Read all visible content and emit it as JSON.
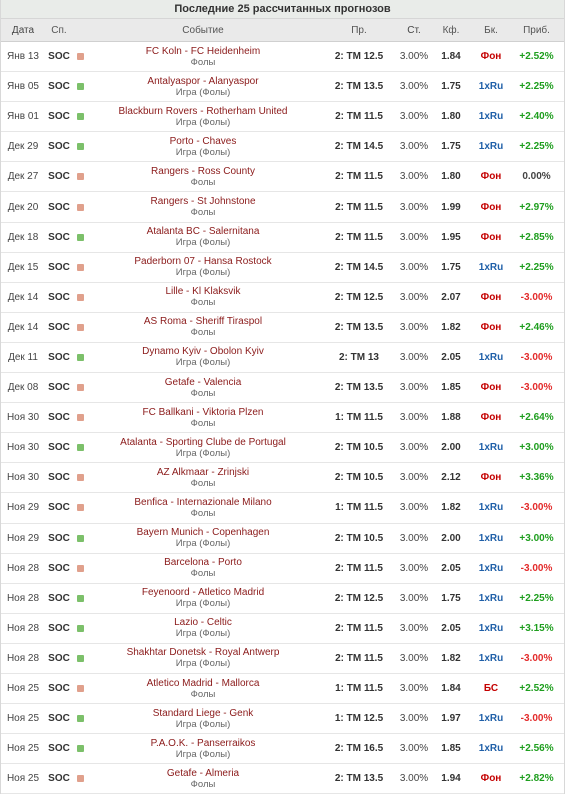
{
  "title": "Последние 25 рассчитанных прогнозов",
  "columns": {
    "date": "Дата",
    "sport": "Сп.",
    "event": "Событие",
    "prediction": "Пр.",
    "stake": "Ст.",
    "odds": "Кф.",
    "bookmaker": "Бк.",
    "profit": "Приб."
  },
  "colors": {
    "loss_mark": "#e0a08c",
    "win_mark": "#7cc06a",
    "positive": "#1e9e1e",
    "negative": "#e32b2b",
    "event_text": "#8b1a1a"
  },
  "rows": [
    {
      "date": "Янв 13",
      "sport": "SOC",
      "result": "loss",
      "event": "FC Koln - FC Heidenheim",
      "category": "Фолы",
      "prediction": "2: ТМ 12.5",
      "stake": "3.00%",
      "odds": "1.84",
      "bookmaker": "Фон",
      "profit": "+2.52%",
      "profit_sign": "pos"
    },
    {
      "date": "Янв 05",
      "sport": "SOC",
      "result": "win",
      "event": "Antalyaspor - Alanyaspor",
      "category": "Игра (Фолы)",
      "prediction": "2: ТМ 13.5",
      "stake": "3.00%",
      "odds": "1.75",
      "bookmaker": "1xRu",
      "profit": "+2.25%",
      "profit_sign": "pos"
    },
    {
      "date": "Янв 01",
      "sport": "SOC",
      "result": "win",
      "event": "Blackburn Rovers - Rotherham United",
      "category": "Игра (Фолы)",
      "prediction": "2: ТМ 11.5",
      "stake": "3.00%",
      "odds": "1.80",
      "bookmaker": "1xRu",
      "profit": "+2.40%",
      "profit_sign": "pos"
    },
    {
      "date": "Дек 29",
      "sport": "SOC",
      "result": "win",
      "event": "Porto - Chaves",
      "category": "Игра (Фолы)",
      "prediction": "2: ТМ 14.5",
      "stake": "3.00%",
      "odds": "1.75",
      "bookmaker": "1xRu",
      "profit": "+2.25%",
      "profit_sign": "pos"
    },
    {
      "date": "Дек 27",
      "sport": "SOC",
      "result": "loss",
      "event": "Rangers - Ross County",
      "category": "Фолы",
      "prediction": "2: ТМ 11.5",
      "stake": "3.00%",
      "odds": "1.80",
      "bookmaker": "Фон",
      "profit": "0.00%",
      "profit_sign": "zero"
    },
    {
      "date": "Дек 20",
      "sport": "SOC",
      "result": "loss",
      "event": "Rangers - St Johnstone",
      "category": "Фолы",
      "prediction": "2: ТМ 11.5",
      "stake": "3.00%",
      "odds": "1.99",
      "bookmaker": "Фон",
      "profit": "+2.97%",
      "profit_sign": "pos"
    },
    {
      "date": "Дек 18",
      "sport": "SOC",
      "result": "win",
      "event": "Atalanta BC - Salernitana",
      "category": "Игра (Фолы)",
      "prediction": "2: ТМ 11.5",
      "stake": "3.00%",
      "odds": "1.95",
      "bookmaker": "Фон",
      "profit": "+2.85%",
      "profit_sign": "pos"
    },
    {
      "date": "Дек 15",
      "sport": "SOC",
      "result": "loss",
      "event": "Paderborn 07 - Hansa Rostock",
      "category": "Игра (Фолы)",
      "prediction": "2: ТМ 14.5",
      "stake": "3.00%",
      "odds": "1.75",
      "bookmaker": "1xRu",
      "profit": "+2.25%",
      "profit_sign": "pos"
    },
    {
      "date": "Дек 14",
      "sport": "SOC",
      "result": "loss",
      "event": "Lille - Kl Klaksvik",
      "category": "Фолы",
      "prediction": "2: ТМ 12.5",
      "stake": "3.00%",
      "odds": "2.07",
      "bookmaker": "Фон",
      "profit": "-3.00%",
      "profit_sign": "neg"
    },
    {
      "date": "Дек 14",
      "sport": "SOC",
      "result": "loss",
      "event": "AS Roma - Sheriff Tiraspol",
      "category": "Фолы",
      "prediction": "2: ТМ 13.5",
      "stake": "3.00%",
      "odds": "1.82",
      "bookmaker": "Фон",
      "profit": "+2.46%",
      "profit_sign": "pos"
    },
    {
      "date": "Дек 11",
      "sport": "SOC",
      "result": "win",
      "event": "Dynamo Kyiv - Obolon Kyiv",
      "category": "Игра (Фолы)",
      "prediction": "2: ТМ 13",
      "stake": "3.00%",
      "odds": "2.05",
      "bookmaker": "1xRu",
      "profit": "-3.00%",
      "profit_sign": "neg"
    },
    {
      "date": "Дек 08",
      "sport": "SOC",
      "result": "loss",
      "event": "Getafe - Valencia",
      "category": "Фолы",
      "prediction": "2: ТМ 13.5",
      "stake": "3.00%",
      "odds": "1.85",
      "bookmaker": "Фон",
      "profit": "-3.00%",
      "profit_sign": "neg"
    },
    {
      "date": "Ноя 30",
      "sport": "SOC",
      "result": "loss",
      "event": "FC Ballkani - Viktoria Plzen",
      "category": "Фолы",
      "prediction": "1: ТМ 11.5",
      "stake": "3.00%",
      "odds": "1.88",
      "bookmaker": "Фон",
      "profit": "+2.64%",
      "profit_sign": "pos"
    },
    {
      "date": "Ноя 30",
      "sport": "SOC",
      "result": "win",
      "event": "Atalanta - Sporting Clube de Portugal",
      "category": "Игра (Фолы)",
      "prediction": "2: ТМ 10.5",
      "stake": "3.00%",
      "odds": "2.00",
      "bookmaker": "1xRu",
      "profit": "+3.00%",
      "profit_sign": "pos"
    },
    {
      "date": "Ноя 30",
      "sport": "SOC",
      "result": "loss",
      "event": "AZ Alkmaar - Zrinjski",
      "category": "Фолы",
      "prediction": "2: ТМ 10.5",
      "stake": "3.00%",
      "odds": "2.12",
      "bookmaker": "Фон",
      "profit": "+3.36%",
      "profit_sign": "pos"
    },
    {
      "date": "Ноя 29",
      "sport": "SOC",
      "result": "loss",
      "event": "Benfica - Internazionale Milano",
      "category": "Фолы",
      "prediction": "1: ТМ 11.5",
      "stake": "3.00%",
      "odds": "1.82",
      "bookmaker": "1xRu",
      "profit": "-3.00%",
      "profit_sign": "neg"
    },
    {
      "date": "Ноя 29",
      "sport": "SOC",
      "result": "win",
      "event": "Bayern Munich - Copenhagen",
      "category": "Игра (Фолы)",
      "prediction": "2: ТМ 10.5",
      "stake": "3.00%",
      "odds": "2.00",
      "bookmaker": "1xRu",
      "profit": "+3.00%",
      "profit_sign": "pos"
    },
    {
      "date": "Ноя 28",
      "sport": "SOC",
      "result": "loss",
      "event": "Barcelona - Porto",
      "category": "Фолы",
      "prediction": "2: ТМ 11.5",
      "stake": "3.00%",
      "odds": "2.05",
      "bookmaker": "1xRu",
      "profit": "-3.00%",
      "profit_sign": "neg"
    },
    {
      "date": "Ноя 28",
      "sport": "SOC",
      "result": "win",
      "event": "Feyenoord - Atletico Madrid",
      "category": "Игра (Фолы)",
      "prediction": "2: ТМ 12.5",
      "stake": "3.00%",
      "odds": "1.75",
      "bookmaker": "1xRu",
      "profit": "+2.25%",
      "profit_sign": "pos"
    },
    {
      "date": "Ноя 28",
      "sport": "SOC",
      "result": "win",
      "event": "Lazio - Celtic",
      "category": "Игра (Фолы)",
      "prediction": "2: ТМ 11.5",
      "stake": "3.00%",
      "odds": "2.05",
      "bookmaker": "1xRu",
      "profit": "+3.15%",
      "profit_sign": "pos"
    },
    {
      "date": "Ноя 28",
      "sport": "SOC",
      "result": "win",
      "event": "Shakhtar Donetsk - Royal Antwerp",
      "category": "Игра (Фолы)",
      "prediction": "2: ТМ 11.5",
      "stake": "3.00%",
      "odds": "1.82",
      "bookmaker": "1xRu",
      "profit": "-3.00%",
      "profit_sign": "neg"
    },
    {
      "date": "Ноя 25",
      "sport": "SOC",
      "result": "loss",
      "event": "Atletico Madrid - Mallorca",
      "category": "Фолы",
      "prediction": "1: ТМ 11.5",
      "stake": "3.00%",
      "odds": "1.84",
      "bookmaker": "БС",
      "profit": "+2.52%",
      "profit_sign": "pos"
    },
    {
      "date": "Ноя 25",
      "sport": "SOC",
      "result": "win",
      "event": "Standard Liege - Genk",
      "category": "Игра (Фолы)",
      "prediction": "1: ТМ 12.5",
      "stake": "3.00%",
      "odds": "1.97",
      "bookmaker": "1xRu",
      "profit": "-3.00%",
      "profit_sign": "neg"
    },
    {
      "date": "Ноя 25",
      "sport": "SOC",
      "result": "win",
      "event": "P.A.O.K. - Panserraikos",
      "category": "Игра (Фолы)",
      "prediction": "2: ТМ 16.5",
      "stake": "3.00%",
      "odds": "1.85",
      "bookmaker": "1xRu",
      "profit": "+2.56%",
      "profit_sign": "pos"
    },
    {
      "date": "Ноя 25",
      "sport": "SOC",
      "result": "loss",
      "event": "Getafe - Almeria",
      "category": "Фолы",
      "prediction": "2: ТМ 13.5",
      "stake": "3.00%",
      "odds": "1.94",
      "bookmaker": "Фон",
      "profit": "+2.82%",
      "profit_sign": "pos"
    }
  ]
}
